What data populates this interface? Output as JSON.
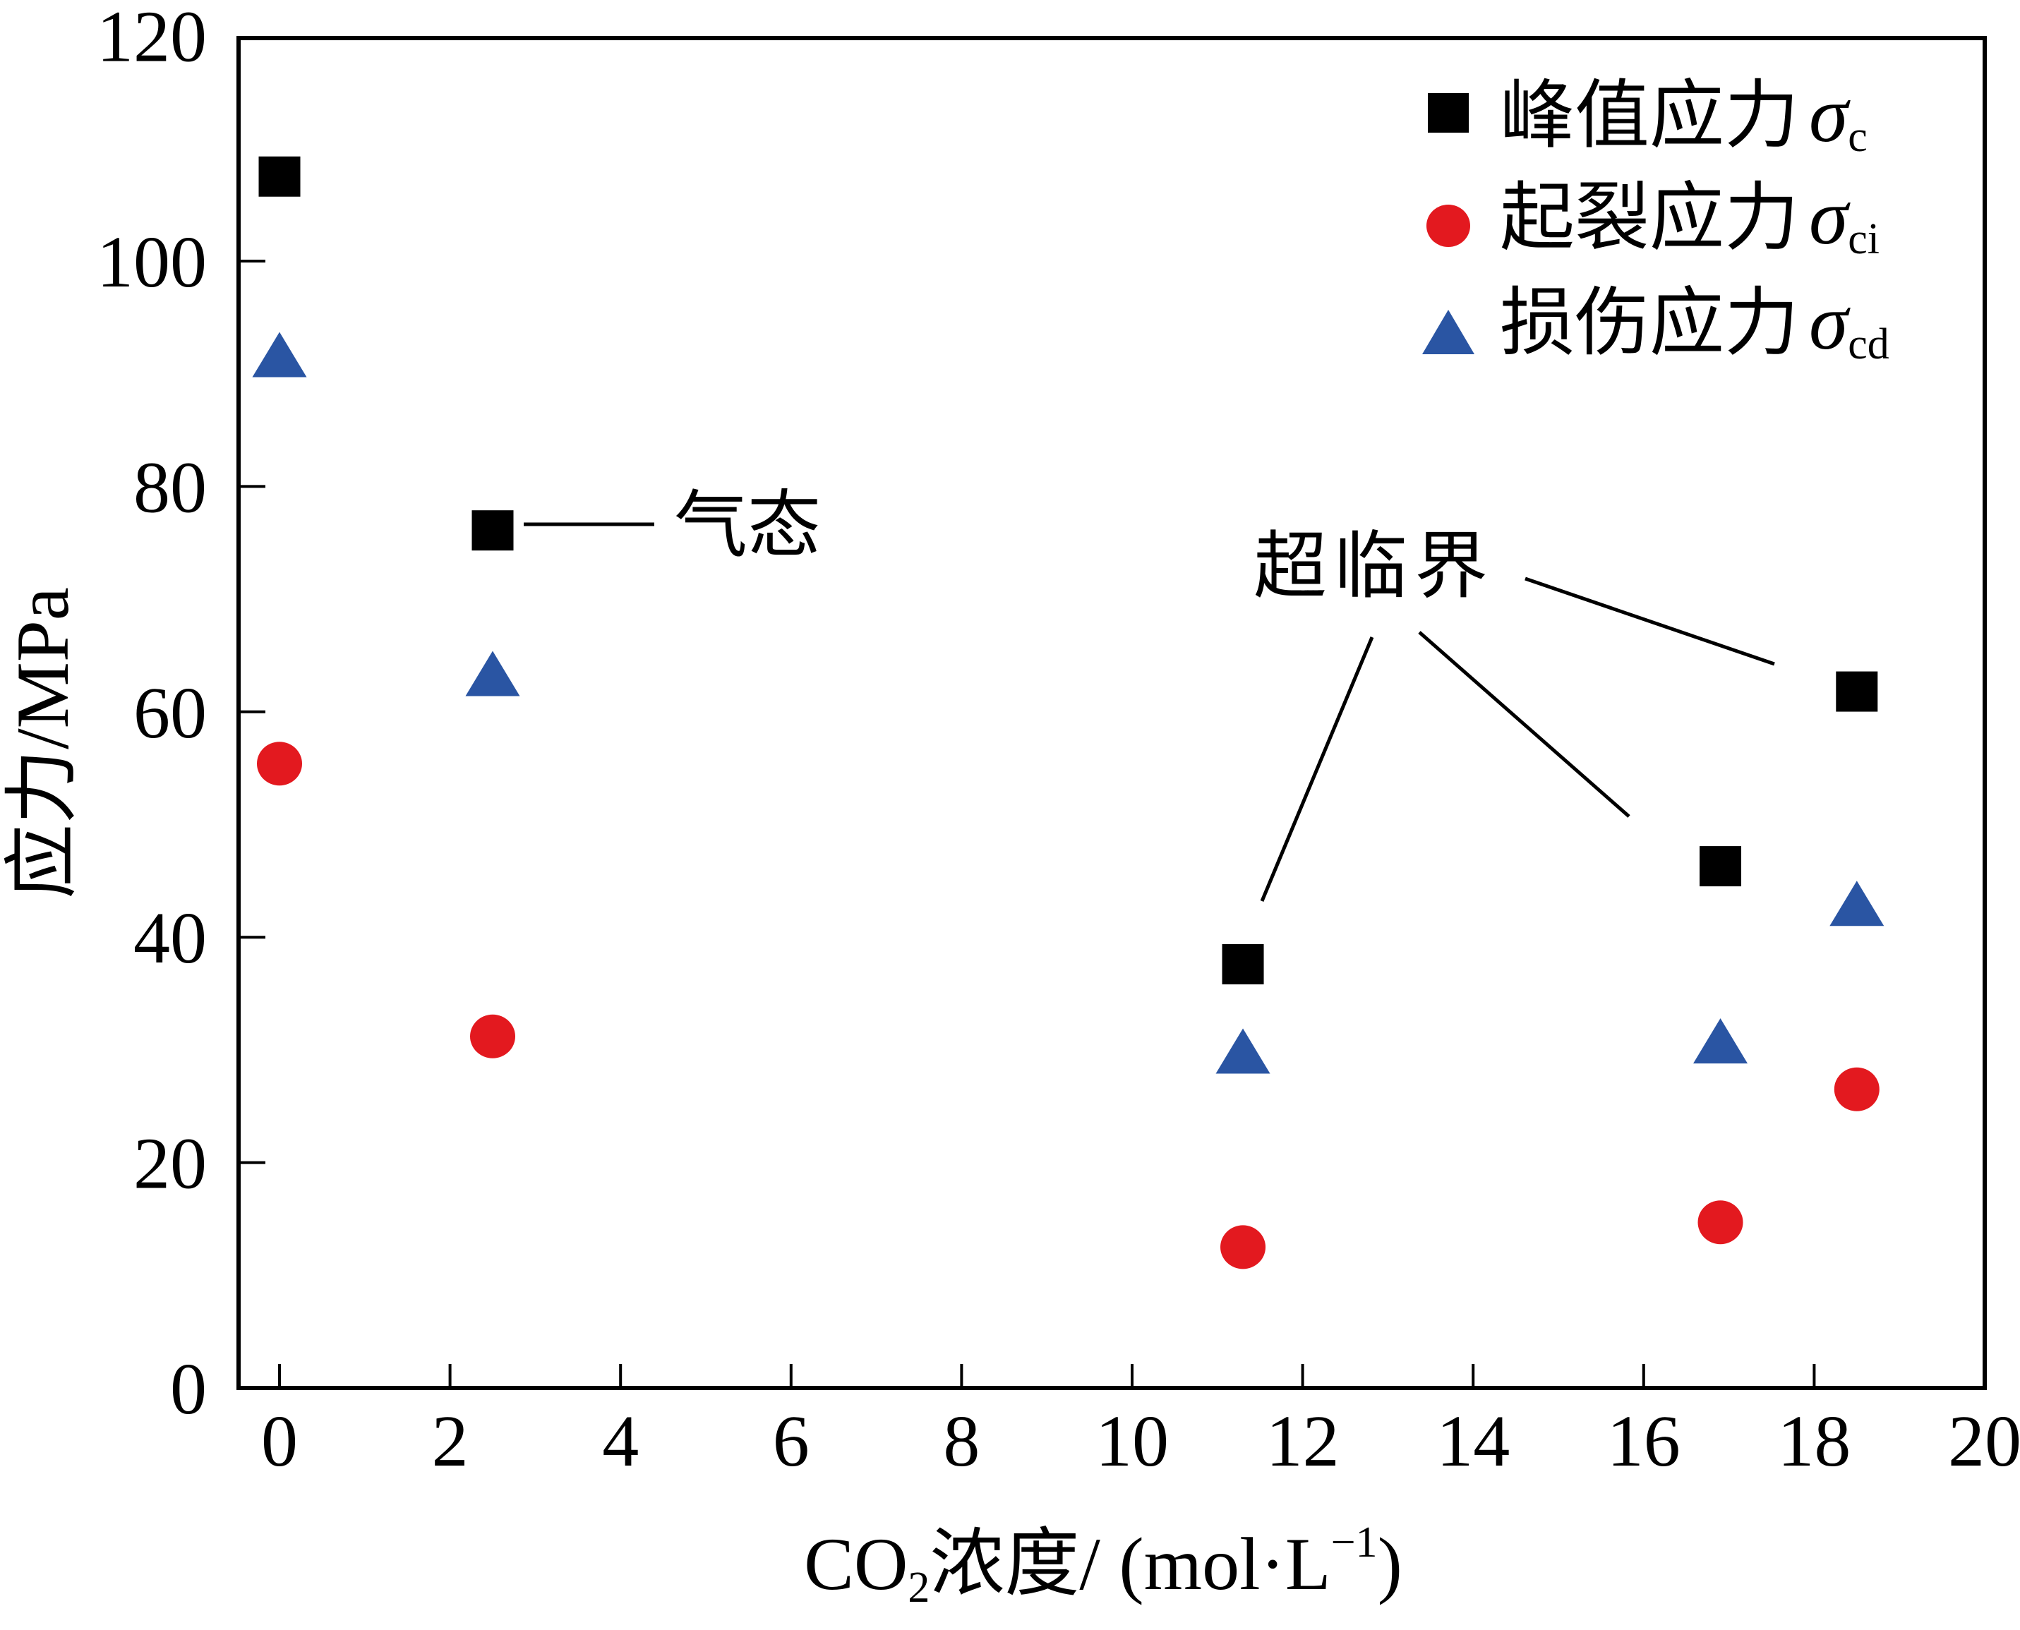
{
  "chart_data": {
    "type": "scatter",
    "title": "",
    "xlabel": {
      "main": "CO",
      "sub": "2",
      "rest": "浓度/ (mol·L",
      "sup": "−1",
      "close": ")"
    },
    "ylabel": "应力/MPa",
    "xlim": [
      -0.5,
      20
    ],
    "ylim": [
      0,
      120
    ],
    "xticks": [
      0,
      2,
      4,
      6,
      8,
      10,
      12,
      14,
      16,
      18,
      20
    ],
    "yticks": [
      0,
      20,
      40,
      60,
      80,
      100,
      120
    ],
    "grid": false,
    "legend_position": "top-right",
    "x": [
      0,
      2.5,
      11.3,
      16.9,
      18.5
    ],
    "series": [
      {
        "key": "peak",
        "name": "峰值应力",
        "symbol": "σ",
        "subscript": "c",
        "marker": "square",
        "color": "#000000",
        "values": [
          107.5,
          76.1,
          37.6,
          46.3,
          61.8
        ]
      },
      {
        "key": "crack-initiation",
        "name": "起裂应力",
        "symbol": "σ",
        "subscript": "ci",
        "marker": "circle",
        "color": "#e3191f",
        "values": [
          55.4,
          31.2,
          12.5,
          14.7,
          26.5
        ]
      },
      {
        "key": "damage",
        "name": "损伤应力",
        "symbol": "σ",
        "subscript": "cd",
        "marker": "triangle",
        "color": "#2a55a3",
        "values": [
          91.7,
          63.4,
          29.9,
          30.8,
          43.0
        ]
      }
    ],
    "annotations": [
      {
        "text": "气态",
        "points_to_x": [
          2.5
        ]
      },
      {
        "text": "超临界",
        "points_to_x": [
          11.3,
          16.9,
          18.5
        ]
      }
    ]
  }
}
